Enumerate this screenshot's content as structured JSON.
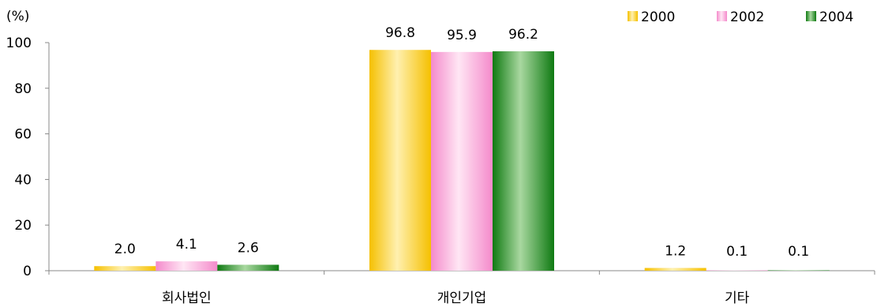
{
  "chart_data": {
    "type": "bar",
    "unit_label": "(%)",
    "categories": [
      "회사법인",
      "개인기업",
      "기타"
    ],
    "series": [
      {
        "name": "2000",
        "values": [
          2.0,
          96.8,
          1.2
        ],
        "labels": [
          "2.0",
          "96.8",
          "1.2"
        ]
      },
      {
        "name": "2002",
        "values": [
          4.1,
          95.9,
          0.1
        ],
        "labels": [
          "4.1",
          "95.9",
          "0.1"
        ]
      },
      {
        "name": "2004",
        "values": [
          2.6,
          96.2,
          0.1
        ],
        "labels": [
          "2.6",
          "96.2",
          "0.1"
        ]
      }
    ],
    "yticks": [
      "0",
      "20",
      "40",
      "60",
      "80",
      "100"
    ],
    "ylim": [
      0,
      100
    ],
    "grid": false,
    "legend_position": "top-right",
    "colors": {
      "2000": {
        "dark": "#F5C000",
        "light": "#FFF0B0"
      },
      "2002": {
        "dark": "#F48ACB",
        "light": "#FFE6F4"
      },
      "2004": {
        "dark": "#0F7A12",
        "light": "#A9D8A0"
      }
    }
  }
}
